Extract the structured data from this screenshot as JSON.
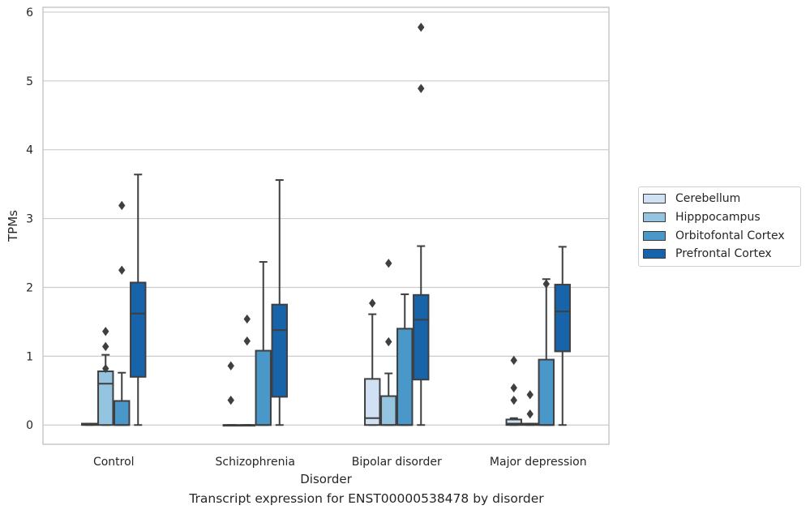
{
  "chart_data": {
    "type": "box",
    "caption": "Transcript expression for ENST00000538478 by disorder",
    "xlabel": "Disorder",
    "ylabel": "TPMs",
    "ylim": [
      -0.28,
      6.07
    ],
    "yticks": [
      0,
      1,
      2,
      3,
      4,
      5,
      6
    ],
    "grid": "horizontal",
    "legend_position": "right",
    "categories": [
      "Control",
      "Schizophrenia",
      "Bipolar disorder",
      "Major depression"
    ],
    "series": [
      {
        "name": "Cerebellum",
        "color": "#cfe1f2",
        "boxes": [
          {
            "whislo": 0,
            "q1": 0,
            "med": 0.01,
            "q3": 0.02,
            "whishi": 0.02,
            "fliers": []
          },
          {
            "whislo": 0,
            "q1": 0,
            "med": 0,
            "q3": 0,
            "whishi": 0,
            "fliers": [
              0.36,
              0.86
            ]
          },
          {
            "whislo": 0,
            "q1": 0,
            "med": 0.1,
            "q3": 0.67,
            "whishi": 1.61,
            "fliers": [
              1.77
            ]
          },
          {
            "whislo": 0,
            "q1": 0,
            "med": 0.02,
            "q3": 0.08,
            "whishi": 0.1,
            "fliers": [
              0.36,
              0.54,
              0.94
            ]
          }
        ]
      },
      {
        "name": "Hipppocampus",
        "color": "#94c4df",
        "boxes": [
          {
            "whislo": 0,
            "q1": 0,
            "med": 0.6,
            "q3": 0.78,
            "whishi": 1.02,
            "fliers": [
              0.82,
              1.14,
              1.36
            ]
          },
          {
            "whislo": 0,
            "q1": 0,
            "med": 0,
            "q3": 0,
            "whishi": 0,
            "fliers": [
              1.22,
              1.54
            ]
          },
          {
            "whislo": 0,
            "q1": 0,
            "med": 0,
            "q3": 0.42,
            "whishi": 0.75,
            "fliers": [
              1.21,
              2.35
            ]
          },
          {
            "whislo": 0,
            "q1": 0,
            "med": 0.01,
            "q3": 0.02,
            "whishi": 0.02,
            "fliers": [
              0.16,
              0.44
            ]
          }
        ]
      },
      {
        "name": "Orbitofontal Cortex",
        "color": "#4a98c9",
        "boxes": [
          {
            "whislo": 0,
            "q1": 0,
            "med": 0,
            "q3": 0.35,
            "whishi": 0.76,
            "fliers": [
              2.25,
              3.19
            ]
          },
          {
            "whislo": 0,
            "q1": 0,
            "med": 0,
            "q3": 1.08,
            "whishi": 2.37,
            "fliers": []
          },
          {
            "whislo": 0,
            "q1": 0,
            "med": 0,
            "q3": 1.4,
            "whishi": 1.9,
            "fliers": []
          },
          {
            "whislo": 0,
            "q1": 0,
            "med": 0,
            "q3": 0.95,
            "whishi": 2.12,
            "fliers": [
              2.05
            ]
          }
        ]
      },
      {
        "name": "Prefrontal Cortex",
        "color": "#1764ab",
        "boxes": [
          {
            "whislo": 0,
            "q1": 0.7,
            "med": 1.62,
            "q3": 2.07,
            "whishi": 3.64,
            "fliers": []
          },
          {
            "whislo": 0,
            "q1": 0.41,
            "med": 1.38,
            "q3": 1.75,
            "whishi": 3.56,
            "fliers": []
          },
          {
            "whislo": 0,
            "q1": 0.66,
            "med": 1.53,
            "q3": 1.89,
            "whishi": 2.6,
            "fliers": [
              4.89,
              5.78
            ]
          },
          {
            "whislo": 0,
            "q1": 1.07,
            "med": 1.65,
            "q3": 2.04,
            "whishi": 2.59,
            "fliers": []
          }
        ]
      }
    ]
  }
}
